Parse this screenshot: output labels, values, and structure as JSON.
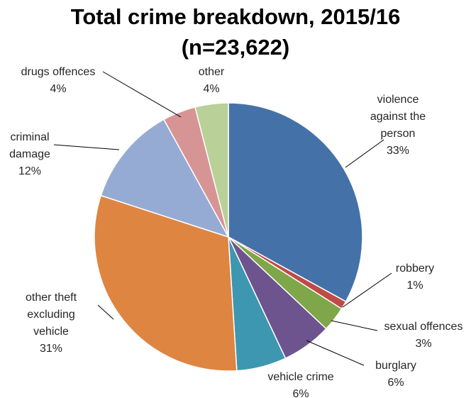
{
  "chart_data": {
    "type": "pie",
    "title": "Total crime breakdown, 2015/16",
    "subtitle": "(n=23,622)",
    "slices": [
      {
        "label": "violence against the person",
        "label_lines": [
          "violence",
          "against the",
          "person"
        ],
        "percent_label": "33%",
        "value": 33,
        "color": "#4472A8"
      },
      {
        "label": "robbery",
        "label_lines": [
          "robbery"
        ],
        "percent_label": "1%",
        "value": 1,
        "color": "#BE4B48"
      },
      {
        "label": "sexual offences",
        "label_lines": [
          "sexual offences"
        ],
        "percent_label": "3%",
        "value": 3,
        "color": "#7FA648"
      },
      {
        "label": "burglary",
        "label_lines": [
          "burglary"
        ],
        "percent_label": "6%",
        "value": 6,
        "color": "#6E548F"
      },
      {
        "label": "vehicle crime",
        "label_lines": [
          "vehicle crime"
        ],
        "percent_label": "6%",
        "value": 6,
        "color": "#3E97B0"
      },
      {
        "label": "other theft excluding vehicle",
        "label_lines": [
          "other theft",
          "excluding",
          "vehicle"
        ],
        "percent_label": "31%",
        "value": 31,
        "color": "#DE8542"
      },
      {
        "label": "criminal damage",
        "label_lines": [
          "criminal",
          "damage"
        ],
        "percent_label": "12%",
        "value": 12,
        "color": "#95ABD3"
      },
      {
        "label": "drugs offences",
        "label_lines": [
          "drugs offences"
        ],
        "percent_label": "4%",
        "value": 4,
        "color": "#D69594"
      },
      {
        "label": "other",
        "label_lines": [
          "other"
        ],
        "percent_label": "4%",
        "value": 4,
        "color": "#B9D098"
      }
    ],
    "start_angle": "12 o'clock",
    "direction": "clockwise",
    "legend": "none, labels outside slices with leader lines"
  }
}
